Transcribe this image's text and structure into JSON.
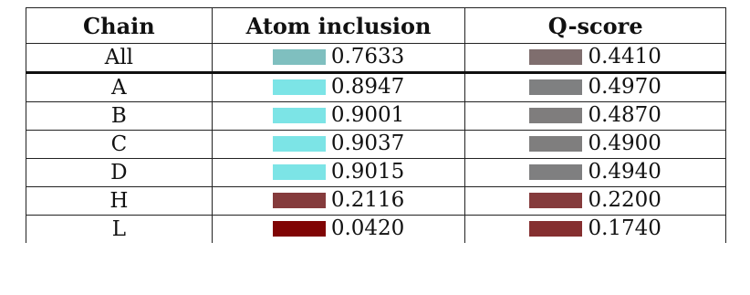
{
  "headers": {
    "chain": "Chain",
    "atom_inclusion": "Atom inclusion",
    "q_score": "Q-score"
  },
  "rows": [
    {
      "chain": "All",
      "atom_value": "0.7633",
      "atom_color": "#7fbfbf",
      "q_value": "0.4410",
      "q_color": "#7f6e6e"
    },
    {
      "chain": "A",
      "atom_value": "0.8947",
      "atom_color": "#7ce4e6",
      "q_value": "0.4970",
      "q_color": "#7f8081"
    },
    {
      "chain": "B",
      "atom_value": "0.9001",
      "atom_color": "#7ce4e6",
      "q_value": "0.4870",
      "q_color": "#7f7d7d"
    },
    {
      "chain": "C",
      "atom_value": "0.9037",
      "atom_color": "#7ce4e6",
      "q_value": "0.4900",
      "q_color": "#7f7e7e"
    },
    {
      "chain": "D",
      "atom_value": "0.9015",
      "atom_color": "#7ce4e6",
      "q_value": "0.4940",
      "q_color": "#7f7f80"
    },
    {
      "chain": "H",
      "atom_value": "0.2116",
      "atom_color": "#853b3c",
      "q_value": "0.2200",
      "q_color": "#853b3c"
    },
    {
      "chain": "L",
      "atom_value": "0.0420",
      "atom_color": "#800505",
      "q_value": "0.1740",
      "q_color": "#852f30"
    }
  ]
}
